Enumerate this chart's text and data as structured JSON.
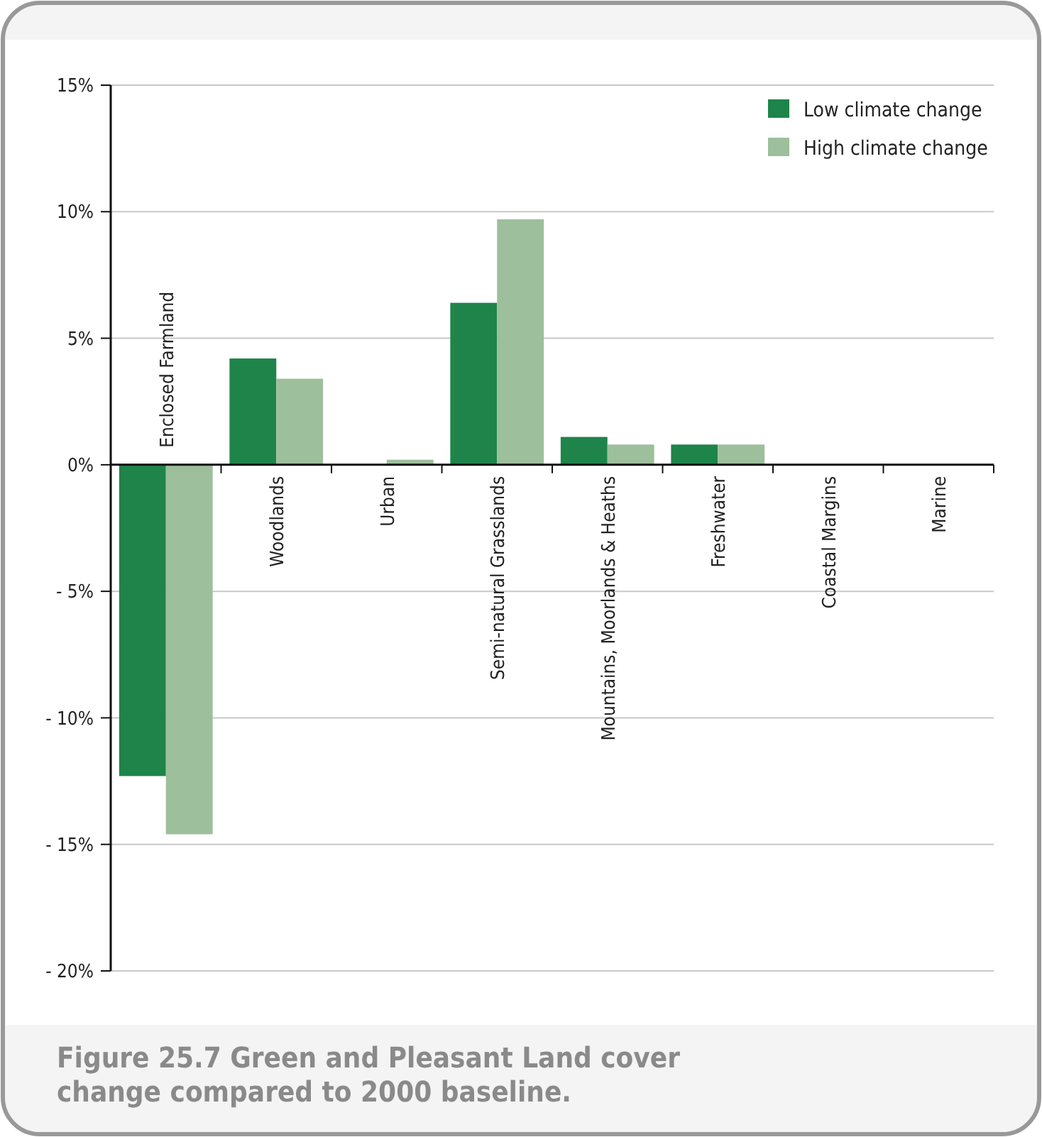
{
  "chart_data": {
    "type": "bar",
    "title": "Figure 25.7 Green and Pleasant Land cover change compared to 2000 baseline.",
    "categories": [
      "Enclosed Farmland",
      "Woodlands",
      "Urban",
      "Semi-natural Grasslands",
      "Mountains, Moorlands & Heaths",
      "Freshwater",
      "Coastal Margins",
      "Marine"
    ],
    "series": [
      {
        "name": "Low climate change",
        "color": "#1e844a",
        "values": [
          -12.3,
          4.2,
          0,
          6.4,
          1.1,
          0.8,
          0,
          0
        ]
      },
      {
        "name": "High climate change",
        "color": "#9dbf9c",
        "values": [
          -14.6,
          3.4,
          0.2,
          9.7,
          0.8,
          0.8,
          0,
          0
        ]
      }
    ],
    "ylim": [
      -20,
      15
    ],
    "yticks": [
      {
        "value": -20,
        "label": "- 20%"
      },
      {
        "value": -15,
        "label": "- 15%"
      },
      {
        "value": -10,
        "label": "- 10%"
      },
      {
        "value": -5,
        "label": "- 5%"
      },
      {
        "value": 0,
        "label": "0%"
      },
      {
        "value": 5,
        "label": "5%"
      },
      {
        "value": 10,
        "label": "10%"
      },
      {
        "value": 15,
        "label": "15%"
      }
    ],
    "grid": "y",
    "legend": "top right"
  }
}
